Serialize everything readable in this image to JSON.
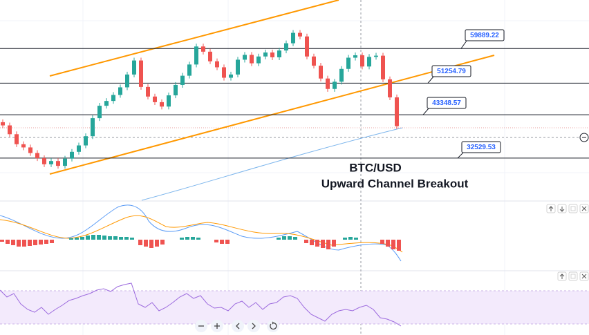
{
  "chart_data": {
    "type": "candlestick",
    "annotations": [
      "BTC/USD",
      "Upward Channel Breakout"
    ],
    "levels": [
      59889.22,
      51254.79,
      43348.57,
      32529.53
    ],
    "ylim": [
      22000,
      72000
    ],
    "up_color": "#26a69a",
    "down_color": "#ef5350",
    "open": [
      41500,
      40700,
      38500,
      36000,
      35200,
      33800,
      32500,
      31000,
      31800,
      30600,
      32400,
      34100,
      35700,
      38000,
      42500,
      45600,
      46800,
      48300,
      50200,
      53400,
      56900,
      50300,
      47900,
      46500,
      45400,
      48200,
      50800,
      53100,
      55900,
      60400,
      59100,
      56700,
      55200,
      52600,
      53400,
      57100,
      58300,
      56200,
      57900,
      58900,
      57700,
      59400,
      61200,
      63800,
      62900,
      57900,
      55600,
      52400,
      49800,
      51600,
      54800,
      57600,
      58200,
      55400,
      57800,
      58100,
      52200,
      47700
    ],
    "high": [
      42200,
      41400,
      39200,
      36700,
      35900,
      34500,
      33200,
      32500,
      32500,
      33100,
      34800,
      36400,
      38700,
      43200,
      46300,
      47500,
      49000,
      50900,
      54100,
      57600,
      57600,
      51000,
      48600,
      47200,
      48900,
      51500,
      53800,
      56600,
      61100,
      61100,
      59800,
      57400,
      55900,
      54100,
      57800,
      59000,
      59000,
      58600,
      59600,
      59600,
      60100,
      61900,
      64500,
      64500,
      63600,
      58600,
      56300,
      53100,
      52300,
      55500,
      58300,
      58900,
      58900,
      58500,
      58800,
      58800,
      52900,
      48400
    ],
    "low": [
      40000,
      37800,
      35300,
      34500,
      33100,
      31800,
      30300,
      30300,
      29900,
      29900,
      31700,
      33400,
      35000,
      37300,
      41800,
      44900,
      46100,
      47600,
      49500,
      52700,
      49600,
      47200,
      45800,
      44700,
      44700,
      47500,
      50100,
      52400,
      55200,
      58400,
      56000,
      54500,
      51900,
      51900,
      52700,
      56400,
      55500,
      55500,
      57200,
      57000,
      57000,
      58700,
      60500,
      62200,
      57200,
      54900,
      51700,
      49100,
      49100,
      50900,
      54100,
      56900,
      54700,
      54700,
      57100,
      51500,
      47000,
      39800
    ],
    "close": [
      40700,
      38500,
      36000,
      35200,
      33800,
      32500,
      31000,
      31800,
      30600,
      32400,
      34100,
      35700,
      38000,
      42500,
      45600,
      46800,
      48300,
      50200,
      53400,
      56900,
      50300,
      47900,
      46500,
      45400,
      48200,
      50800,
      53100,
      55900,
      60400,
      59100,
      56700,
      55200,
      52600,
      53400,
      57100,
      58300,
      56200,
      57900,
      58900,
      57700,
      59400,
      61200,
      63800,
      62900,
      57900,
      55600,
      52400,
      49800,
      51600,
      54800,
      57600,
      58200,
      55400,
      57800,
      58100,
      52200,
      47700,
      40500
    ]
  }
}
